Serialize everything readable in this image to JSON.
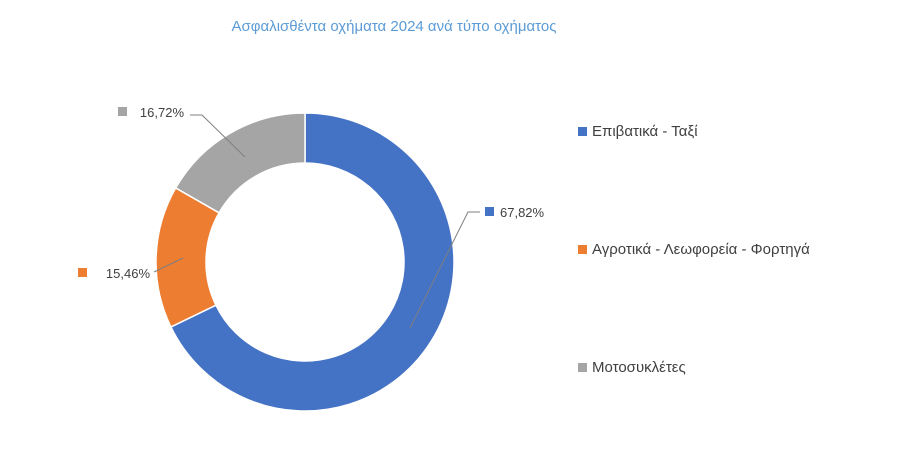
{
  "chart_data": {
    "type": "pie",
    "variant": "donut",
    "title": "Ασφαλισθέντα οχήματα 2024 ανά τύπο οχήματος",
    "categories": [
      "Επιβατικά - Ταξί",
      "Αγροτικά - Λεωφορεία - Φορτηγά",
      "Μοτοσυκλέτες"
    ],
    "values": [
      67.82,
      15.46,
      16.72
    ],
    "labels": [
      "67,82%",
      "15,46%",
      "16,72%"
    ],
    "colors": [
      "#4472c4",
      "#ed7d31",
      "#a5a5a5"
    ],
    "legend_position": "right"
  }
}
